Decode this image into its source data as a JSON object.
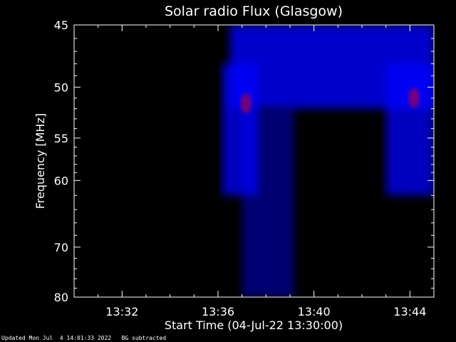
{
  "chart_data": {
    "type": "heatmap",
    "title": "Solar radio Flux (Glasgow)",
    "ylabel": "Frequency [MHz]",
    "xlabel": "Start Time (04-Jul-22 13:30:00)",
    "y_scale": "reciprocal",
    "ylim": [
      45,
      80
    ],
    "xlim": [
      "13:30:00",
      "13:45:00"
    ],
    "y_ticks": [
      45,
      50,
      55,
      60,
      70,
      80
    ],
    "x_ticks": [
      "13:32",
      "13:36",
      "13:40",
      "13:44"
    ],
    "colormap": [
      "#000000",
      "#0000ff",
      "#ff0000"
    ],
    "grid": false,
    "emission_regions": [
      {
        "t_start": "13:36:30",
        "t_end": "13:45:00",
        "f_low": 45,
        "f_high": 52,
        "intensity": 0.8
      },
      {
        "t_start": "13:36:10",
        "t_end": "13:37:40",
        "f_low": 48,
        "f_high": 62,
        "intensity": 0.75
      },
      {
        "t_start": "13:43:00",
        "t_end": "13:45:00",
        "f_low": 48,
        "f_high": 62,
        "intensity": 0.75
      },
      {
        "t_start": "13:37:00",
        "t_end": "13:39:10",
        "f_low": 52,
        "f_high": 80,
        "intensity": 0.45
      }
    ],
    "peaks": [
      {
        "t": "13:37:10",
        "f": 51.5,
        "intensity": 1.0
      },
      {
        "t": "13:44:10",
        "f": 51,
        "intensity": 1.0
      }
    ]
  },
  "footer": {
    "updated": "Updated Mon Jul  4 14:01:33 2022   BG subtracted"
  }
}
